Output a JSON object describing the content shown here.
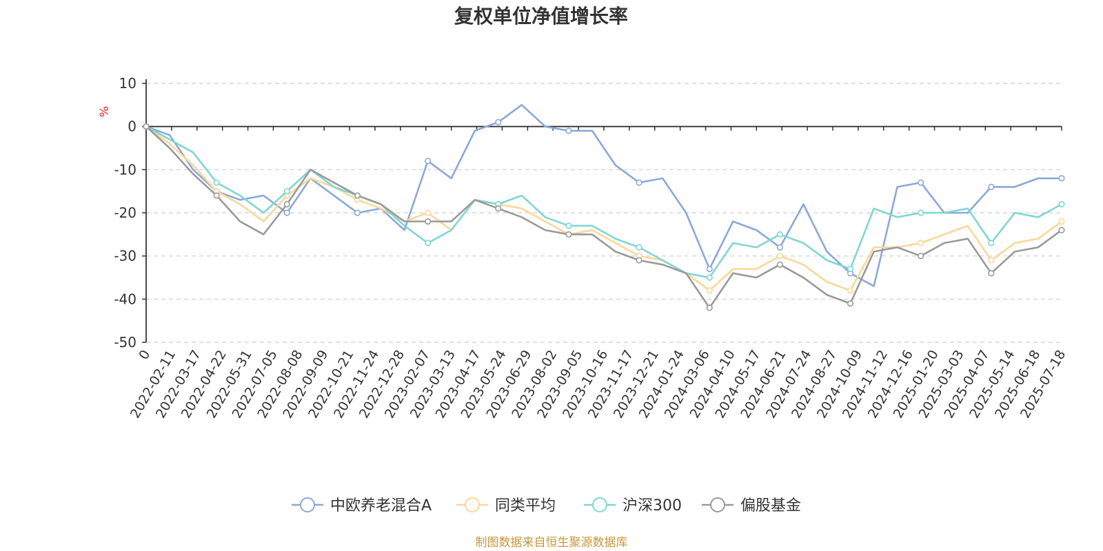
{
  "chart_data": {
    "type": "line",
    "title": "复权单位净值增长率",
    "ylabel": "%",
    "ylim": [
      -50,
      10
    ],
    "yticks": [
      10,
      0,
      -10,
      -20,
      -30,
      -40,
      -50
    ],
    "grid": true,
    "legend_position": "bottom",
    "source": "制图数据来自恒生聚源数据库",
    "x_tick_labels": [
      "0",
      "2022-02-11",
      "2022-03-17",
      "2022-04-22",
      "2022-05-31",
      "2022-07-05",
      "2022-08-08",
      "2022-09-09",
      "2022-10-21",
      "2022-11-24",
      "2022-12-28",
      "2023-02-07",
      "2023-03-13",
      "2023-04-17",
      "2023-05-24",
      "2023-06-29",
      "2023-08-02",
      "2023-09-05",
      "2023-10-16",
      "2023-11-17",
      "2023-12-21",
      "2024-01-24",
      "2024-03-06",
      "2024-04-10",
      "2024-05-17",
      "2024-06-21",
      "2024-07-24",
      "2024-08-27",
      "2024-10-09",
      "2024-11-12",
      "2024-12-16",
      "2025-01-20",
      "2025-03-03",
      "2025-04-07",
      "2025-05-14",
      "2025-06-18",
      "2025-07-18"
    ],
    "series": [
      {
        "name": "中欧养老混合A",
        "color": "#8ba8d8",
        "values": [
          0,
          -2,
          -10,
          -15,
          -17,
          -16,
          -20,
          -12,
          -16,
          -20,
          -19,
          -24,
          -8,
          -12,
          -1,
          1,
          5,
          0,
          -1,
          -1,
          -9,
          -13,
          -12,
          -20,
          -33,
          -22,
          -24,
          -28,
          -18,
          -29,
          -34,
          -37,
          -14,
          -13,
          -20,
          -20,
          -14,
          -14,
          -12,
          -12
        ]
      },
      {
        "name": "同类平均",
        "color": "#fad797",
        "values": [
          0,
          -4,
          -9,
          -15,
          -18,
          -22,
          -16,
          -12,
          -14,
          -17,
          -19,
          -22,
          -20,
          -24,
          -17,
          -18,
          -19,
          -22,
          -25,
          -24,
          -27,
          -30,
          -31,
          -34,
          -38,
          -33,
          -33,
          -30,
          -32,
          -36,
          -38,
          -28,
          -28,
          -27,
          -25,
          -23,
          -31,
          -27,
          -26,
          -22
        ]
      },
      {
        "name": "沪深300",
        "color": "#7fd6d2",
        "values": [
          0,
          -3,
          -6,
          -13,
          -16,
          -20,
          -15,
          -10,
          -14,
          -16,
          -18,
          -23,
          -27,
          -24,
          -17,
          -18,
          -16,
          -21,
          -23,
          -23,
          -26,
          -28,
          -31,
          -34,
          -35,
          -27,
          -28,
          -25,
          -27,
          -31,
          -33,
          -19,
          -21,
          -20,
          -20,
          -19,
          -27,
          -20,
          -21,
          -18
        ]
      },
      {
        "name": "偏股基金",
        "color": "#999999",
        "values": [
          0,
          -5,
          -11,
          -16,
          -22,
          -25,
          -18,
          -10,
          -13,
          -16,
          -18,
          -22,
          -22,
          -22,
          -17,
          -19,
          -21,
          -24,
          -25,
          -25,
          -29,
          -31,
          -32,
          -34,
          -42,
          -34,
          -35,
          -32,
          -35,
          -39,
          -41,
          -29,
          -28,
          -30,
          -27,
          -26,
          -34,
          -29,
          -28,
          -24
        ]
      }
    ]
  }
}
